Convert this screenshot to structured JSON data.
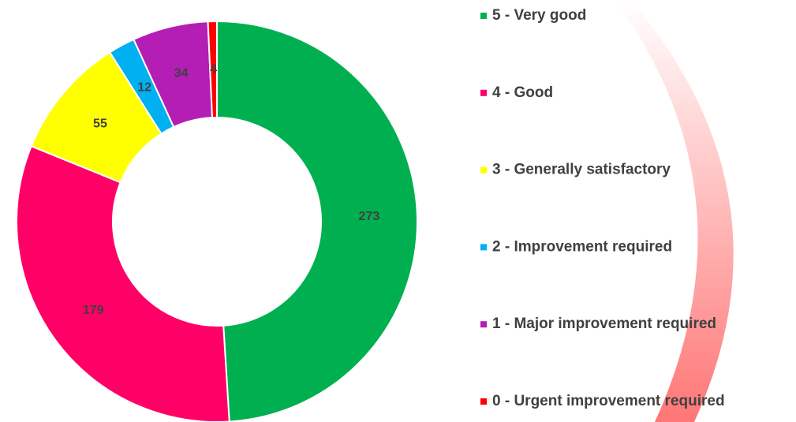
{
  "chart_data": {
    "type": "donut",
    "categories": [
      "5 - Very good",
      "4 - Good",
      "3 - Generally satisfactory",
      "2 - Improvement required",
      "1 - Major improvement required",
      "0 - Urgent improvement required"
    ],
    "values": [
      273,
      179,
      55,
      12,
      34,
      4
    ],
    "colors": [
      "#00b050",
      "#ff0066",
      "#ffff00",
      "#00b0f0",
      "#b41eb4",
      "#ff0000"
    ],
    "legend": "right"
  }
}
